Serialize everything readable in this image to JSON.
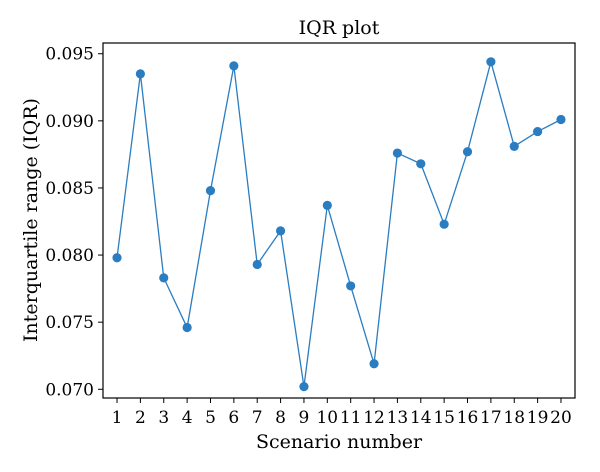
{
  "chart_data": {
    "type": "line",
    "title": "IQR plot",
    "xlabel": "Scenario number",
    "ylabel": "Interquartile range (IQR)",
    "x": [
      1,
      2,
      3,
      4,
      5,
      6,
      7,
      8,
      9,
      10,
      11,
      12,
      13,
      14,
      15,
      16,
      17,
      18,
      19,
      20
    ],
    "x_tick_labels": [
      "1",
      "2",
      "3",
      "4",
      "5",
      "6",
      "7",
      "8",
      "9",
      "10",
      "11",
      "12",
      "13",
      "14",
      "15",
      "16",
      "17",
      "18",
      "19",
      "20"
    ],
    "xlim": [
      0.4,
      20.6
    ],
    "series": [
      {
        "values": [
          0.0798,
          0.0935,
          0.0783,
          0.0746,
          0.0848,
          0.0941,
          0.0793,
          0.0818,
          0.0702,
          0.0837,
          0.0777,
          0.0719,
          0.0876,
          0.0868,
          0.0823,
          0.0877,
          0.0944,
          0.0881,
          0.0892,
          0.0901
        ],
        "color": "#2a7dc1"
      }
    ],
    "y_ticks": [
      0.07,
      0.075,
      0.08,
      0.085,
      0.09,
      0.095
    ],
    "y_tick_labels": [
      "0.070",
      "0.075",
      "0.080",
      "0.085",
      "0.090",
      "0.095"
    ],
    "ylim": [
      0.06935,
      0.0958
    ],
    "grid": false,
    "legend": "none"
  }
}
